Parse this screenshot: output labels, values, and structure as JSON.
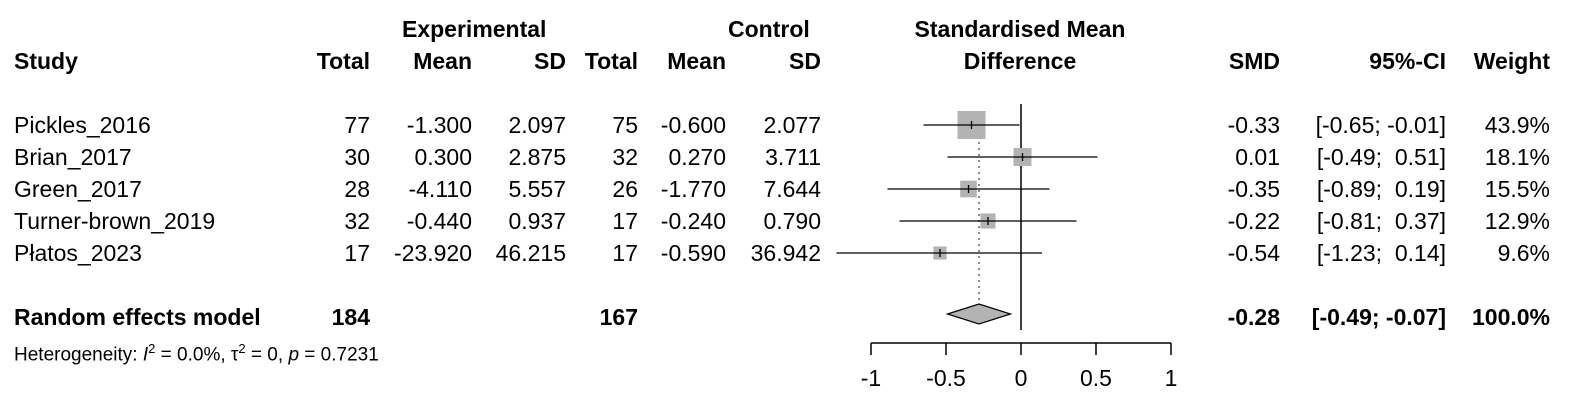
{
  "headers": {
    "group_experimental": "Experimental",
    "group_control": "Control",
    "smd_line1": "Standardised Mean",
    "smd_line2": "Difference",
    "study": "Study",
    "exp_total": "Total",
    "exp_mean": "Mean",
    "exp_sd": "SD",
    "ctl_total": "Total",
    "ctl_mean": "Mean",
    "ctl_sd": "SD",
    "smd": "SMD",
    "ci": "95%-CI",
    "weight": "Weight"
  },
  "studies": [
    {
      "name": "Pickles_2016",
      "e_total": "77",
      "e_mean": "-1.300",
      "e_sd": "2.097",
      "c_total": "75",
      "c_mean": "-0.600",
      "c_sd": "2.077",
      "smd": "-0.33",
      "ci": "[-0.65; -0.01]",
      "weight": "43.9%"
    },
    {
      "name": "Brian_2017",
      "e_total": "30",
      "e_mean": "0.300",
      "e_sd": "2.875",
      "c_total": "32",
      "c_mean": "0.270",
      "c_sd": "3.711",
      "smd": "0.01",
      "ci": "[-0.49;  0.51]",
      "weight": "18.1%"
    },
    {
      "name": "Green_2017",
      "e_total": "28",
      "e_mean": "-4.110",
      "e_sd": "5.557",
      "c_total": "26",
      "c_mean": "-1.770",
      "c_sd": "7.644",
      "smd": "-0.35",
      "ci": "[-0.89;  0.19]",
      "weight": "15.5%"
    },
    {
      "name": "Turner-brown_2019",
      "e_total": "32",
      "e_mean": "-0.440",
      "e_sd": "0.937",
      "c_total": "17",
      "c_mean": "-0.240",
      "c_sd": "0.790",
      "smd": "-0.22",
      "ci": "[-0.81;  0.37]",
      "weight": "12.9%"
    },
    {
      "name": "Płatos_2023",
      "e_total": "17",
      "e_mean": "-23.920",
      "e_sd": "46.215",
      "c_total": "17",
      "c_mean": "-0.590",
      "c_sd": "36.942",
      "smd": "-0.54",
      "ci": "[-1.23;  0.14]",
      "weight": "9.6%"
    }
  ],
  "summary": {
    "label": "Random effects model",
    "e_total": "184",
    "c_total": "167",
    "smd": "-0.28",
    "ci": "[-0.49; -0.07]",
    "weight": "100.0%"
  },
  "heterogeneity": {
    "prefix": "Heterogeneity: ",
    "i2_symbol": "I",
    "i2_value": " = 0.0%, ",
    "tau_symbol": "τ",
    "tau_value": " = 0, ",
    "p_symbol": "p",
    "p_value": " = 0.7231",
    "superscript": "2"
  },
  "chart_data": {
    "type": "forest",
    "title": "Standardised Mean Difference",
    "xlim": [
      -1,
      1
    ],
    "ticks": [
      -1,
      -0.5,
      0,
      0.5,
      1
    ],
    "tick_labels": [
      "-1",
      "-0.5",
      "0",
      "0.5",
      "1"
    ],
    "null_line": 0,
    "pooled_line": -0.28,
    "studies": [
      {
        "name": "Pickles_2016",
        "smd": -0.33,
        "lower": -0.65,
        "upper": -0.01,
        "weight": 43.9
      },
      {
        "name": "Brian_2017",
        "smd": 0.01,
        "lower": -0.49,
        "upper": 0.51,
        "weight": 18.1
      },
      {
        "name": "Green_2017",
        "smd": -0.35,
        "lower": -0.89,
        "upper": 0.19,
        "weight": 15.5
      },
      {
        "name": "Turner-brown_2019",
        "smd": -0.22,
        "lower": -0.81,
        "upper": 0.37,
        "weight": 12.9
      },
      {
        "name": "Płatos_2023",
        "smd": -0.54,
        "lower": -1.23,
        "upper": 0.14,
        "weight": 9.6
      }
    ],
    "pooled": {
      "label": "Random effects model",
      "smd": -0.28,
      "lower": -0.49,
      "upper": -0.07
    },
    "colors": {
      "square": "#b3b3b3",
      "diamond": "#b3b3b3",
      "line": "#000000",
      "dotted": "#666666"
    }
  }
}
